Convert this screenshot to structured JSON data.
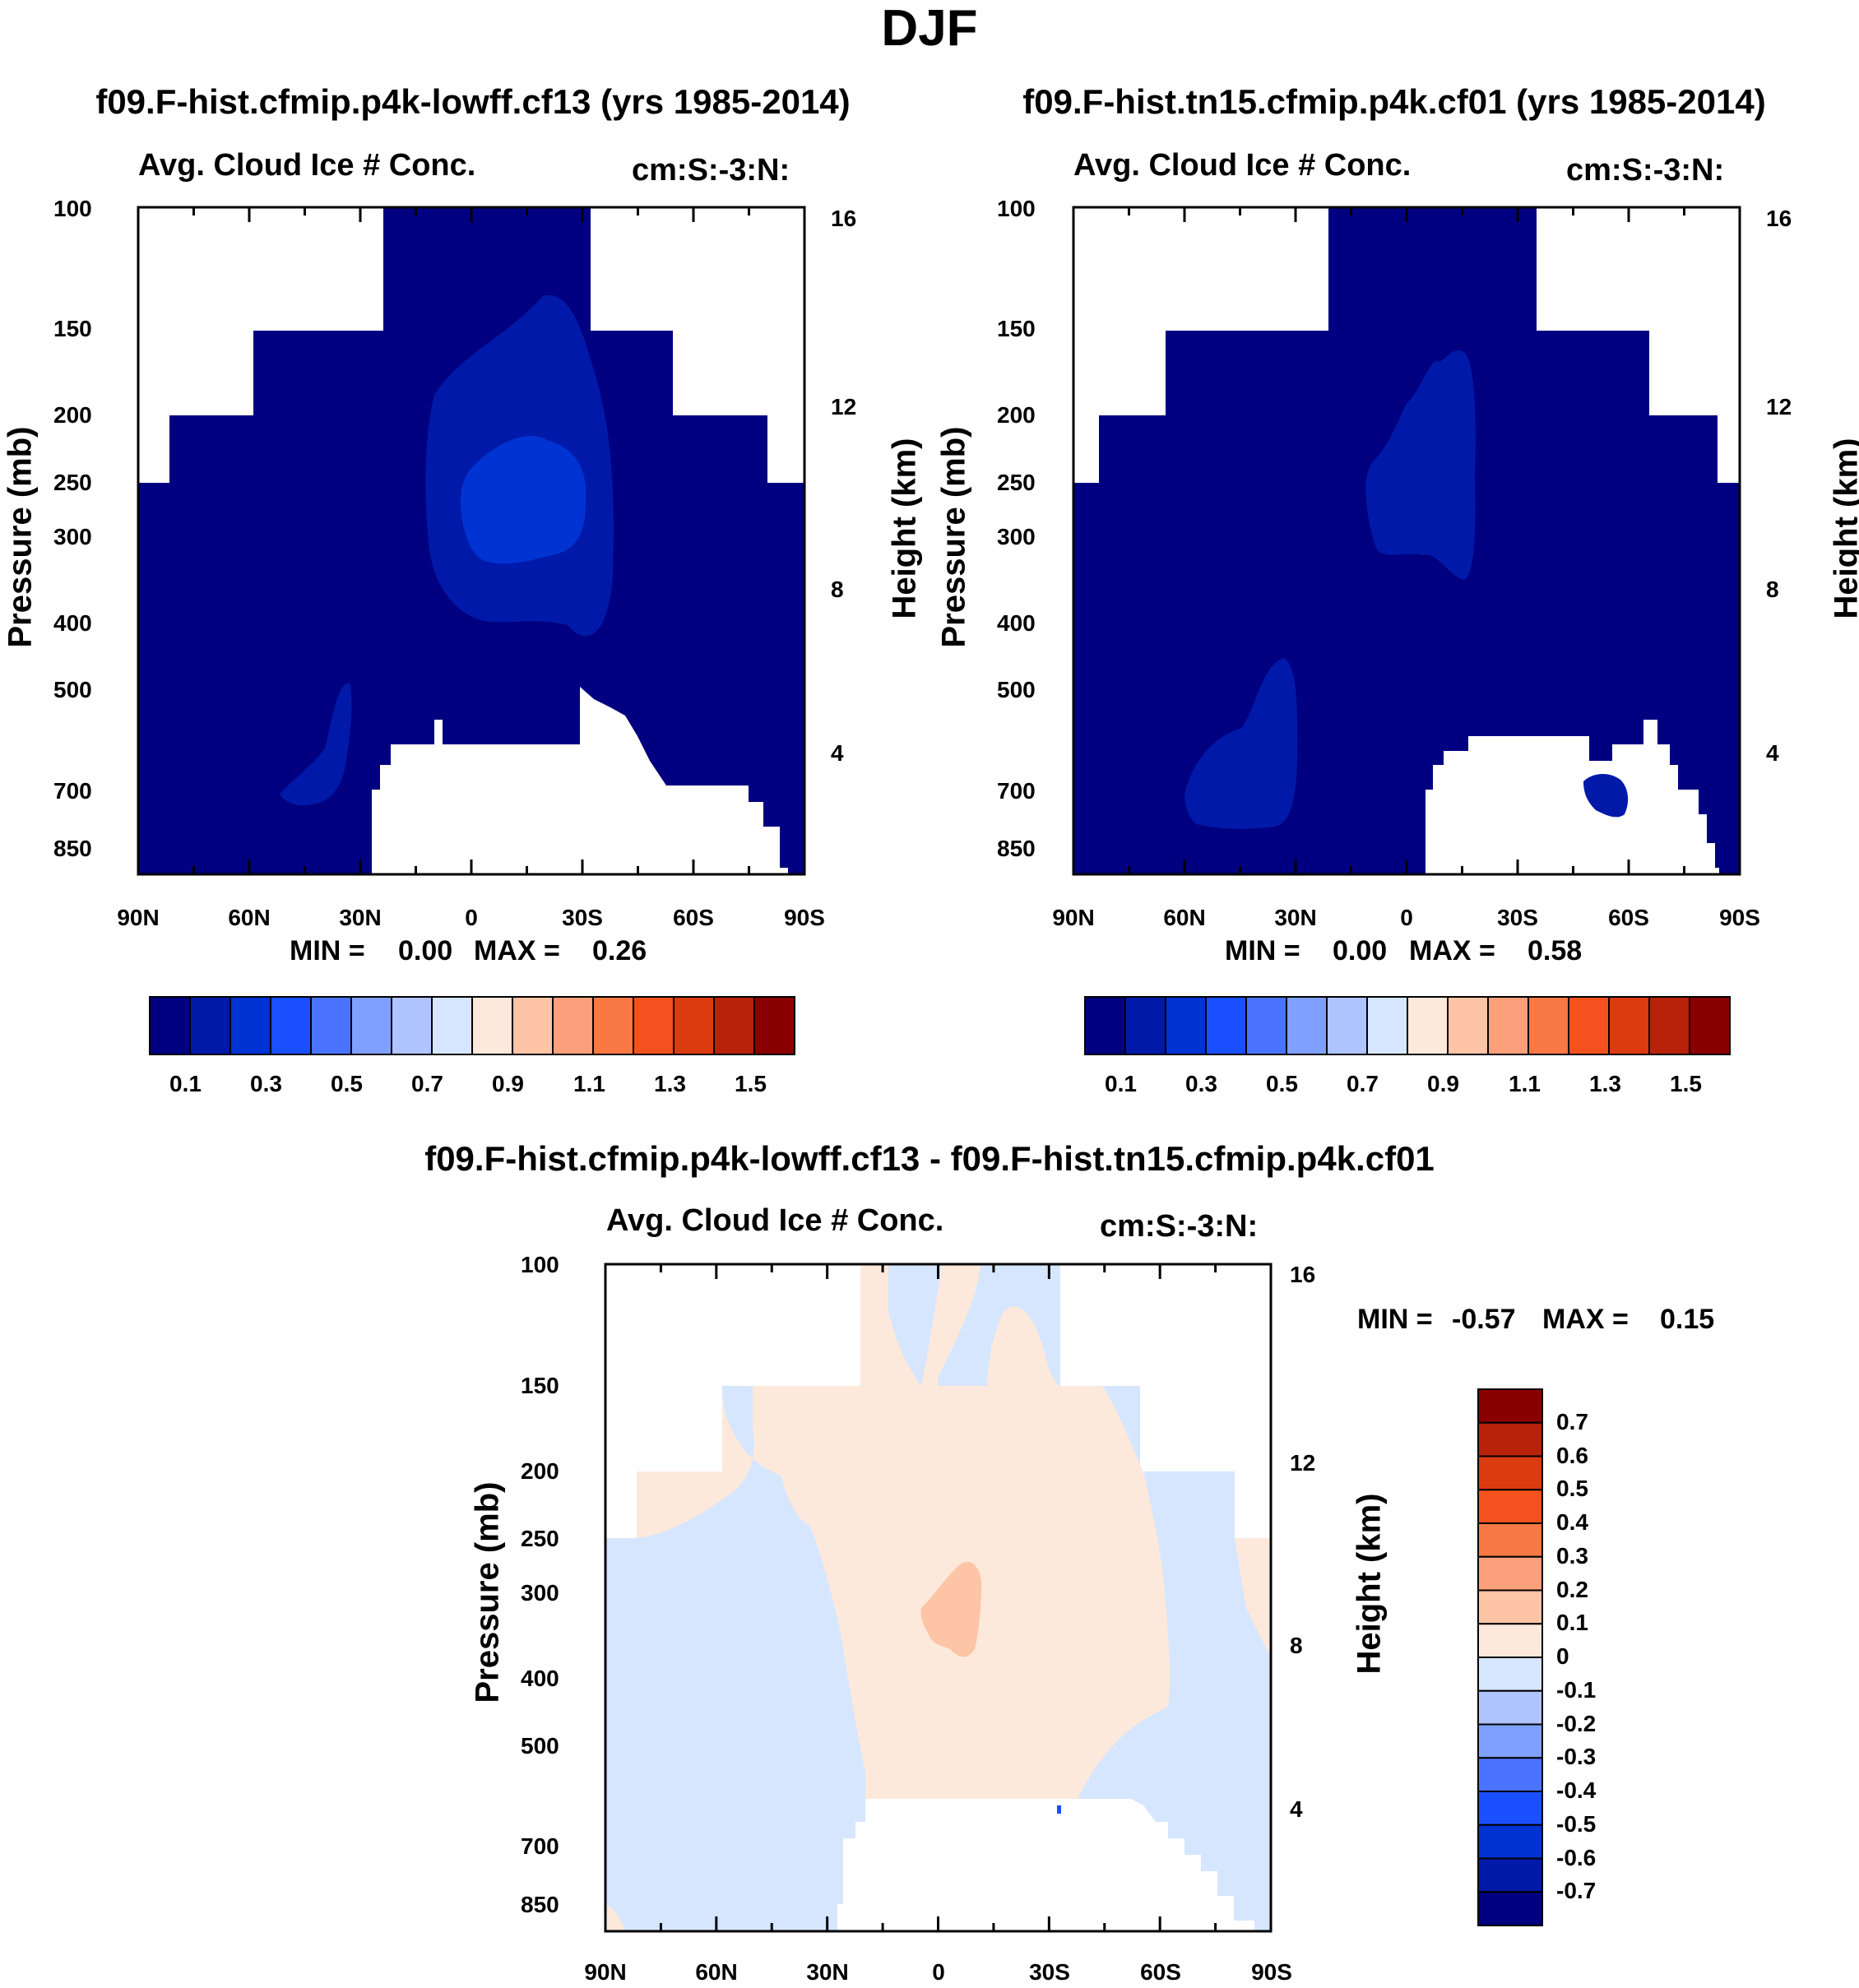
{
  "title": "DJF",
  "colors": {
    "seq": [
      "#000080",
      "#0019a8",
      "#0033d2",
      "#1a4fff",
      "#4a73ff",
      "#7fa0ff",
      "#b0c4ff",
      "#d6e6ff",
      "#fde9db",
      "#fdc4a6",
      "#fba07a",
      "#f97844",
      "#f4511e",
      "#dc3b0f",
      "#b8220b",
      "#8a0000"
    ],
    "diff": [
      "#000080",
      "#0019a8",
      "#0033d2",
      "#1a4fff",
      "#4a73ff",
      "#7fa0ff",
      "#b0c4ff",
      "#d6e6ff",
      "#fde9db",
      "#fdc4a6",
      "#fba07a",
      "#f97844",
      "#f4511e",
      "#dc3b0f",
      "#b8220b",
      "#8a0000"
    ]
  },
  "chart_data": [
    {
      "type": "heatmap",
      "run_title": "f09.F-hist.cfmip.p4k-lowff.cf13 (yrs 1985-2014)",
      "title": "Avg. Cloud Ice # Conc.",
      "units": "cm:S:-3:N:",
      "ylabel": "Pressure (mb)",
      "y2label": "Height (km)",
      "x_ticks": [
        "90N",
        "60N",
        "30N",
        "0",
        "30S",
        "60S",
        "90S"
      ],
      "y_ticks": [
        "100",
        "150",
        "200",
        "250",
        "300",
        "400",
        "500",
        "700",
        "850"
      ],
      "y2_ticks": [
        "16",
        "12",
        "8",
        "4"
      ],
      "min_label": "MIN =",
      "min_value": "0.00",
      "max_label": "MAX =",
      "max_value": "0.26",
      "colorbar_labels": [
        "0.1",
        "0.3",
        "0.5",
        "0.7",
        "0.9",
        "1.1",
        "1.3",
        "1.5"
      ]
    },
    {
      "type": "heatmap",
      "run_title": "f09.F-hist.tn15.cfmip.p4k.cf01 (yrs 1985-2014)",
      "title": "Avg. Cloud Ice # Conc.",
      "units": "cm:S:-3:N:",
      "ylabel": "Pressure (mb)",
      "y2label": "Height (km)",
      "x_ticks": [
        "90N",
        "60N",
        "30N",
        "0",
        "30S",
        "60S",
        "90S"
      ],
      "y_ticks": [
        "100",
        "150",
        "200",
        "250",
        "300",
        "400",
        "500",
        "700",
        "850"
      ],
      "y2_ticks": [
        "16",
        "12",
        "8",
        "4"
      ],
      "min_label": "MIN =",
      "min_value": "0.00",
      "max_label": "MAX =",
      "max_value": "0.58",
      "colorbar_labels": [
        "0.1",
        "0.3",
        "0.5",
        "0.7",
        "0.9",
        "1.1",
        "1.3",
        "1.5"
      ]
    },
    {
      "type": "heatmap",
      "run_title": "f09.F-hist.cfmip.p4k-lowff.cf13 - f09.F-hist.tn15.cfmip.p4k.cf01",
      "title": "Avg. Cloud Ice # Conc.",
      "units": "cm:S:-3:N:",
      "ylabel": "Pressure (mb)",
      "y2label": "Height (km)",
      "x_ticks": [
        "90N",
        "60N",
        "30N",
        "0",
        "30S",
        "60S",
        "90S"
      ],
      "y_ticks": [
        "100",
        "150",
        "200",
        "250",
        "300",
        "400",
        "500",
        "700",
        "850"
      ],
      "y2_ticks": [
        "16",
        "12",
        "8",
        "4"
      ],
      "min_label": "MIN =",
      "min_value": "-0.57",
      "max_label": "MAX =",
      "max_value": "0.15",
      "colorbar_labels": [
        "0.7",
        "0.6",
        "0.5",
        "0.4",
        "0.3",
        "0.2",
        "0.1",
        "0",
        "-0.1",
        "-0.2",
        "-0.3",
        "-0.4",
        "-0.5",
        "-0.6",
        "-0.7"
      ]
    }
  ]
}
